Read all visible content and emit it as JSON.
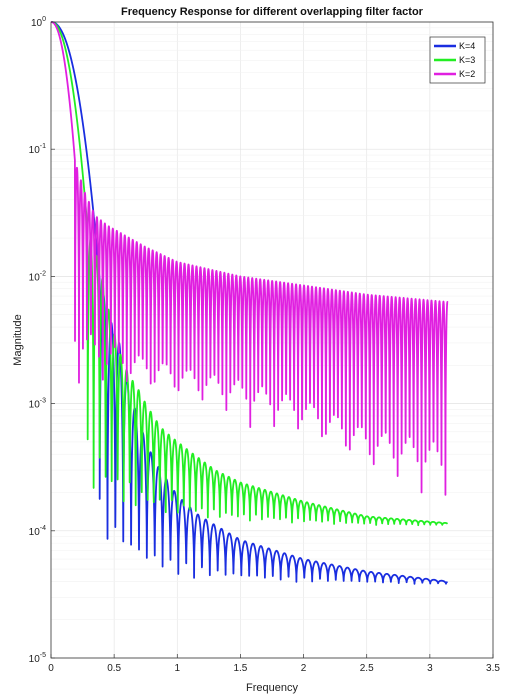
{
  "chart_data": {
    "type": "line",
    "title": "Frequency Response for different overlapping filter factor",
    "xlabel": "Frequency",
    "ylabel": "Magnitude",
    "xlim": [
      0,
      3.5
    ],
    "ylim": [
      1e-05,
      1
    ],
    "yscale": "log",
    "grid": true,
    "legend_position": "top-right",
    "x_ticks": [
      0,
      0.5,
      1,
      1.5,
      2,
      2.5,
      3,
      3.5
    ],
    "x_tick_labels": [
      "0",
      "0.5",
      "1",
      "1.5",
      "2",
      "2.5",
      "3",
      "3.5"
    ],
    "y_tick_exponents": [
      0,
      -1,
      -2,
      -3,
      -4,
      -5
    ],
    "y_tick_base": "10",
    "x_end": 3.14,
    "series": [
      {
        "name": "K=4",
        "color": "#1a2ee0",
        "mainlobe_end": 0.385,
        "peaks": [
          [
            0.385,
            0.0095
          ],
          [
            0.46,
            0.0048
          ],
          [
            0.54,
            0.003
          ],
          [
            0.62,
            0.0013
          ],
          [
            0.69,
            0.00075
          ],
          [
            0.77,
            0.00045
          ],
          [
            0.85,
            0.00032
          ],
          [
            0.93,
            0.00024
          ],
          [
            1.0,
            0.00019
          ],
          [
            1.08,
            0.00016
          ],
          [
            1.16,
            0.000135
          ],
          [
            1.24,
            0.00012
          ],
          [
            1.5,
            8.5e-05
          ],
          [
            2.0,
            6e-05
          ],
          [
            2.5,
            4.8e-05
          ],
          [
            3.14,
            4e-05
          ]
        ],
        "nulls": [
          [
            0.385,
            3.8e-05
          ],
          [
            1.24,
            3.8e-05
          ],
          [
            1.5,
            3.8e-05
          ],
          [
            3.14,
            3.8e-05
          ]
        ]
      },
      {
        "name": "K=3",
        "color": "#22ee22",
        "mainlobe_end": 0.29,
        "peaks": [
          [
            0.29,
            0.023
          ],
          [
            0.39,
            0.012
          ],
          [
            0.45,
            0.0058
          ],
          [
            0.51,
            0.0033
          ],
          [
            0.57,
            0.0021
          ],
          [
            0.63,
            0.0016
          ],
          [
            0.69,
            0.0013
          ],
          [
            0.75,
            0.001
          ],
          [
            0.81,
            0.0008
          ],
          [
            0.87,
            0.00065
          ],
          [
            0.95,
            0.00055
          ],
          [
            1.1,
            0.00042
          ],
          [
            1.3,
            0.0003
          ],
          [
            1.5,
            0.00024
          ],
          [
            2.0,
            0.00017
          ],
          [
            2.5,
            0.00013
          ],
          [
            3.14,
            0.000115
          ]
        ],
        "nulls": [
          [
            0.29,
            0.00011
          ],
          [
            0.87,
            0.00011
          ],
          [
            1.0,
            0.00011
          ],
          [
            3.14,
            0.00011
          ]
        ]
      },
      {
        "name": "K=2",
        "color": "#e020e0",
        "mainlobe_end": 0.19,
        "peaks": [
          [
            0.19,
            0.08
          ],
          [
            0.27,
            0.045
          ],
          [
            0.35,
            0.03
          ],
          [
            0.45,
            0.025
          ],
          [
            0.55,
            0.022
          ],
          [
            0.75,
            0.017
          ],
          [
            1.0,
            0.013
          ],
          [
            1.5,
            0.01
          ],
          [
            2.0,
            0.0085
          ],
          [
            2.5,
            0.0072
          ],
          [
            3.14,
            0.0063
          ]
        ],
        "nulls": [
          [
            0.19,
            0.0012
          ],
          [
            0.5,
            0.001
          ],
          [
            1.0,
            0.0008
          ],
          [
            1.5,
            0.0006
          ],
          [
            2.0,
            0.0004
          ],
          [
            2.5,
            0.0002
          ],
          [
            3.14,
            0.00013
          ]
        ]
      }
    ]
  }
}
